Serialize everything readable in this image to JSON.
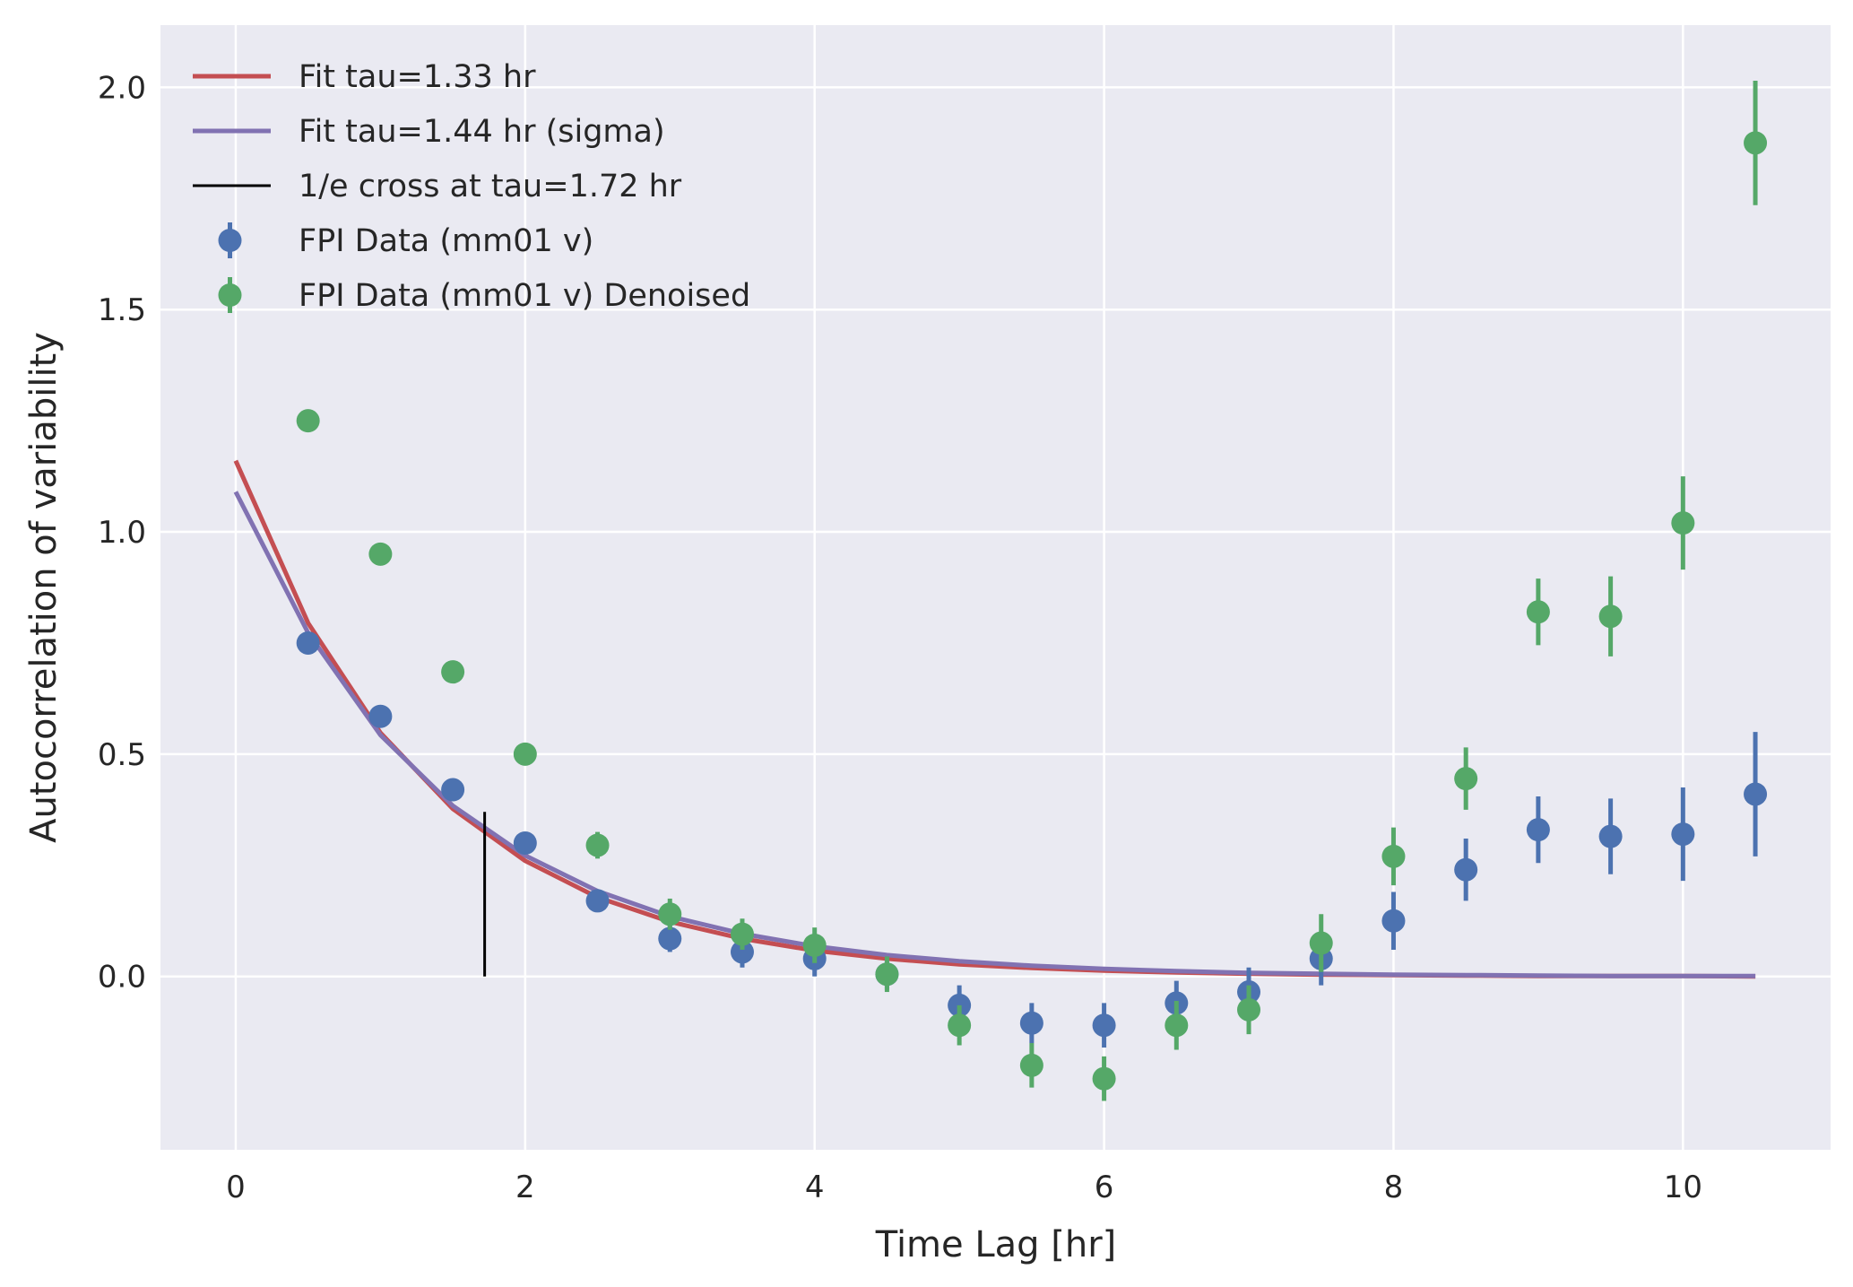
{
  "chart_data": {
    "type": "scatter",
    "title": "",
    "xlabel": "Time Lag [hr]",
    "ylabel": "Autocorrelation of variability",
    "xlim": [
      -0.52,
      11.02
    ],
    "ylim": [
      -0.39,
      2.14
    ],
    "xticks": [
      0,
      2,
      4,
      6,
      8,
      10
    ],
    "yticks": [
      0.0,
      0.5,
      1.0,
      1.5,
      2.0
    ],
    "xtick_labels": [
      "0",
      "2",
      "4",
      "6",
      "8",
      "10"
    ],
    "ytick_labels": [
      "0.0",
      "0.5",
      "1.0",
      "1.5",
      "2.0"
    ],
    "grid": true,
    "legend_position": "top-left",
    "background": "#eaeaf2",
    "legend": [
      {
        "label": "Fit tau=1.33 hr",
        "kind": "line",
        "color": "#c44e52"
      },
      {
        "label": "Fit tau=1.44 hr (sigma)",
        "kind": "line",
        "color": "#8172b2"
      },
      {
        "label": "1/e cross at tau=1.72 hr",
        "kind": "vline",
        "color": "#000000"
      },
      {
        "label": "FPI Data (mm01 v)",
        "kind": "errorbar",
        "color": "#4c72b0"
      },
      {
        "label": "FPI Data (mm01 v) Denoised",
        "kind": "errorbar",
        "color": "#55a868"
      }
    ],
    "fit_lines": [
      {
        "name": "Fit tau=1.33 hr",
        "color": "#c44e52",
        "x": [
          0,
          0.5,
          1,
          1.5,
          2,
          2.5,
          3,
          3.5,
          4,
          4.5,
          5,
          5.5,
          6,
          6.5,
          7,
          7.5,
          8,
          8.5,
          9,
          9.5,
          10,
          10.5
        ],
        "y": [
          1.16,
          0.795,
          0.548,
          0.377,
          0.26,
          0.178,
          0.123,
          0.085,
          0.058,
          0.04,
          0.027,
          0.019,
          0.013,
          0.009,
          0.006,
          0.004,
          0.003,
          0.002,
          0.001,
          0.001,
          0.001,
          0.0
        ]
      },
      {
        "name": "Fit tau=1.44 hr (sigma)",
        "color": "#8172b2",
        "x": [
          0,
          0.5,
          1,
          1.5,
          2,
          2.5,
          3,
          3.5,
          4,
          4.5,
          5,
          5.5,
          6,
          6.5,
          7,
          7.5,
          8,
          8.5,
          9,
          9.5,
          10,
          10.5
        ],
        "y": [
          1.09,
          0.773,
          0.543,
          0.384,
          0.272,
          0.192,
          0.135,
          0.096,
          0.068,
          0.048,
          0.034,
          0.024,
          0.017,
          0.012,
          0.008,
          0.006,
          0.004,
          0.003,
          0.002,
          0.001,
          0.001,
          0.001
        ]
      }
    ],
    "vline": {
      "name": "1/e cross at tau=1.72 hr",
      "x": 1.72,
      "ymin": 0.0,
      "ymax": 0.37,
      "color": "#000000"
    },
    "series": [
      {
        "name": "FPI Data (mm01 v)",
        "color": "#4c72b0",
        "x": [
          0.5,
          1,
          1.5,
          2,
          2.5,
          3,
          3.5,
          4,
          4.5,
          5,
          5.5,
          6,
          6.5,
          7,
          7.5,
          8,
          8.5,
          9,
          9.5,
          10,
          10.5
        ],
        "y": [
          0.75,
          0.585,
          0.42,
          0.3,
          0.17,
          0.085,
          0.055,
          0.04,
          0.005,
          -0.065,
          -0.105,
          -0.11,
          -0.06,
          -0.035,
          0.04,
          0.125,
          0.24,
          0.33,
          0.315,
          0.32,
          0.41
        ],
        "yerr": [
          0.01,
          0.01,
          0.01,
          0.01,
          0.025,
          0.03,
          0.035,
          0.04,
          0.035,
          0.045,
          0.045,
          0.05,
          0.05,
          0.055,
          0.06,
          0.065,
          0.07,
          0.075,
          0.085,
          0.105,
          0.14
        ]
      },
      {
        "name": "FPI Data (mm01 v) Denoised",
        "color": "#55a868",
        "x": [
          0.5,
          1,
          1.5,
          2,
          2.5,
          3,
          3.5,
          4,
          4.5,
          5,
          5.5,
          6,
          6.5,
          7,
          7.5,
          8,
          8.5,
          9,
          9.5,
          10,
          10.5
        ],
        "y": [
          1.25,
          0.95,
          0.685,
          0.5,
          0.295,
          0.14,
          0.095,
          0.07,
          0.005,
          -0.11,
          -0.2,
          -0.23,
          -0.11,
          -0.075,
          0.075,
          0.27,
          0.445,
          0.82,
          0.81,
          1.02,
          1.875
        ],
        "yerr": [
          0.005,
          0.005,
          0.005,
          0.005,
          0.03,
          0.035,
          0.035,
          0.04,
          0.04,
          0.045,
          0.05,
          0.05,
          0.055,
          0.055,
          0.065,
          0.065,
          0.07,
          0.075,
          0.09,
          0.105,
          0.14
        ]
      }
    ]
  }
}
